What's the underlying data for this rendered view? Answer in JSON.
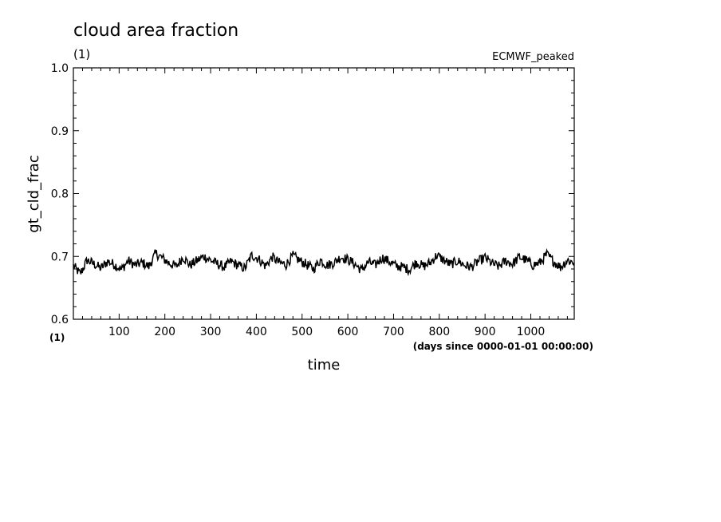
{
  "chart_data": {
    "type": "line",
    "title": "cloud area fraction",
    "units": "(1)",
    "subtitle": "ECMWF_peaked",
    "ylabel": "gt_cld_frac",
    "y_units": "(1)",
    "xlabel": "time",
    "x_units": "(days since 0000-01-01 00:00:00)",
    "xlim": [
      0,
      1095
    ],
    "ylim": [
      0.6,
      1.0
    ],
    "x_ticks": [
      "100",
      "200",
      "300",
      "400",
      "500",
      "600",
      "700",
      "800",
      "900",
      "1000"
    ],
    "y_ticks": [
      "0.6",
      "0.7",
      "0.8",
      "0.9",
      "1.0"
    ],
    "grid": false,
    "series": [
      {
        "x": [
          0,
          15,
          30,
          45,
          60,
          75,
          90,
          105,
          120,
          135,
          150,
          165,
          180,
          195,
          210,
          225,
          240,
          255,
          270,
          285,
          300,
          315,
          330,
          345,
          360,
          375,
          390,
          405,
          420,
          435,
          450,
          465,
          480,
          495,
          510,
          525,
          540,
          555,
          570,
          585,
          600,
          615,
          630,
          645,
          660,
          675,
          690,
          705,
          720,
          735,
          750,
          765,
          780,
          795,
          810,
          825,
          840,
          855,
          870,
          885,
          900,
          915,
          930,
          945,
          960,
          975,
          990,
          1005,
          1020,
          1035,
          1050,
          1065,
          1080,
          1095
        ],
        "y": [
          0.685,
          0.672,
          0.694,
          0.688,
          0.681,
          0.692,
          0.687,
          0.679,
          0.693,
          0.686,
          0.69,
          0.684,
          0.705,
          0.697,
          0.689,
          0.684,
          0.699,
          0.686,
          0.693,
          0.7,
          0.694,
          0.688,
          0.683,
          0.692,
          0.686,
          0.681,
          0.702,
          0.696,
          0.685,
          0.699,
          0.69,
          0.687,
          0.701,
          0.693,
          0.687,
          0.68,
          0.694,
          0.686,
          0.69,
          0.699,
          0.695,
          0.688,
          0.678,
          0.691,
          0.686,
          0.698,
          0.692,
          0.685,
          0.683,
          0.679,
          0.691,
          0.684,
          0.69,
          0.702,
          0.694,
          0.687,
          0.693,
          0.686,
          0.683,
          0.692,
          0.698,
          0.689,
          0.684,
          0.693,
          0.688,
          0.699,
          0.694,
          0.686,
          0.69,
          0.703,
          0.692,
          0.683,
          0.694,
          0.69
        ]
      }
    ]
  }
}
